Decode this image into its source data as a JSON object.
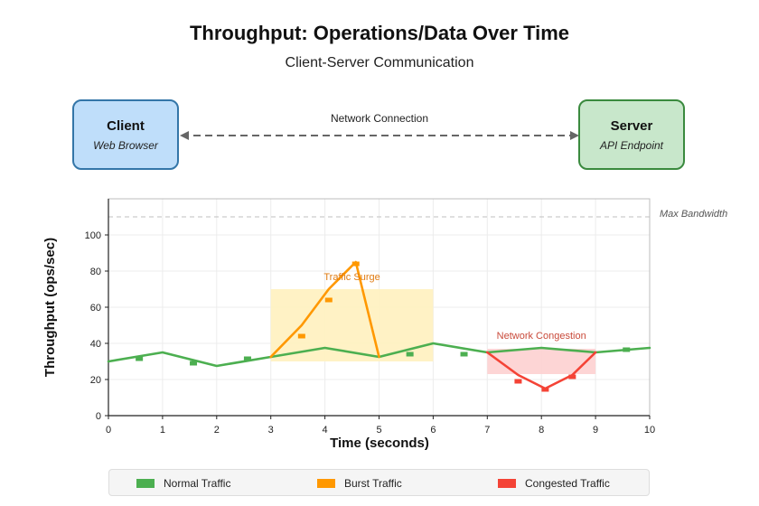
{
  "title": "Throughput: Operations/Data Over Time",
  "subtitle": "Client-Server Communication",
  "nodes": {
    "client": {
      "name": "Client",
      "sub": "Web Browser"
    },
    "server": {
      "name": "Server",
      "sub": "API Endpoint"
    },
    "connection_label": "Network Connection"
  },
  "colors": {
    "normal": "#4caf50",
    "burst": "#ff9800",
    "congested": "#f44336",
    "burst_region": "#fff1c2",
    "congested_region": "#fdd3d3"
  },
  "chart_data": {
    "type": "line",
    "xlabel": "Time (seconds)",
    "ylabel": "Throughput (ops/sec)",
    "xlim": [
      0,
      10
    ],
    "ylim": [
      0,
      120
    ],
    "xticks": [
      0,
      1,
      2,
      3,
      4,
      5,
      6,
      7,
      8,
      9,
      10
    ],
    "yticks": [
      0,
      20,
      40,
      60,
      80,
      100
    ],
    "grid": true,
    "max_bandwidth": {
      "value": 110,
      "label": "Max Bandwidth"
    },
    "regions": [
      {
        "name": "Traffic Surge",
        "x": [
          3,
          6
        ],
        "y": [
          30,
          70
        ],
        "kind": "burst"
      },
      {
        "name": "Network Congestion",
        "x": [
          7,
          9
        ],
        "y": [
          23,
          37
        ],
        "kind": "congested"
      }
    ],
    "series": [
      {
        "name": "Normal Traffic",
        "kind": "normal",
        "x": [
          0,
          1,
          2,
          3,
          4,
          5,
          6,
          7,
          8,
          9,
          10
        ],
        "y": [
          30,
          35,
          27.5,
          32.5,
          37.5,
          32.5,
          40,
          35,
          37.5,
          35,
          37.5
        ],
        "markers_x": [
          0.57,
          1.57,
          2.57,
          5.57,
          6.57,
          9.57
        ],
        "markers_y": [
          31.5,
          29,
          31.5,
          34,
          34,
          36.5
        ]
      },
      {
        "name": "Burst Traffic",
        "kind": "burst",
        "x": [
          3,
          3.57,
          4.07,
          4.57,
          5
        ],
        "y": [
          32.5,
          50,
          70,
          85,
          32.5
        ],
        "markers_x": [
          3.57,
          4.07,
          4.57
        ],
        "markers_y": [
          44,
          64,
          84
        ]
      },
      {
        "name": "Congested Traffic",
        "kind": "congested",
        "x": [
          7,
          7.57,
          8.07,
          8.57,
          9
        ],
        "y": [
          35,
          22.5,
          15,
          22.5,
          35
        ],
        "markers_x": [
          7.57,
          8.07,
          8.57
        ],
        "markers_y": [
          19,
          14.5,
          21.5
        ]
      }
    ],
    "legend": [
      {
        "label": "Normal Traffic",
        "kind": "normal"
      },
      {
        "label": "Burst Traffic",
        "kind": "burst"
      },
      {
        "label": "Congested Traffic",
        "kind": "congested"
      }
    ]
  }
}
